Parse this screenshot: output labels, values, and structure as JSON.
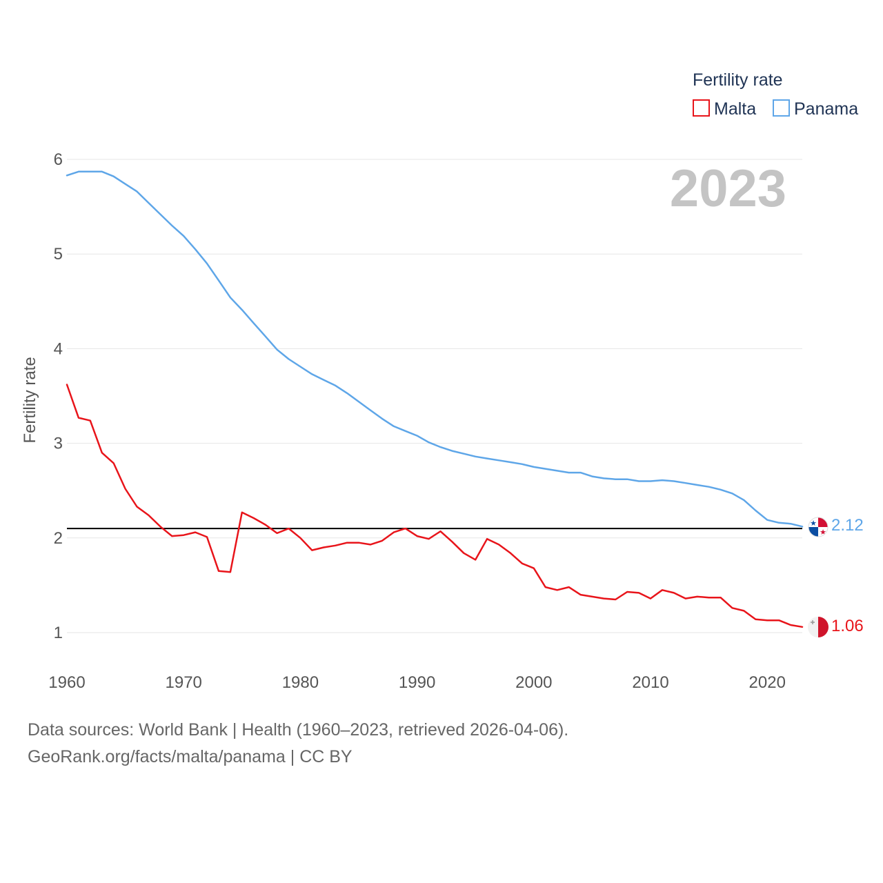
{
  "chart_data": {
    "type": "line",
    "title": "Fertility rate",
    "ylabel": "Fertility rate",
    "xlabel": "",
    "year_label": "2023",
    "xlim": [
      1960,
      2023
    ],
    "ylim": [
      0.55,
      6.2
    ],
    "x_ticks": [
      1960,
      1970,
      1980,
      1990,
      2000,
      2010,
      2020
    ],
    "y_ticks": [
      1,
      2,
      3,
      4,
      5,
      6
    ],
    "reference_line": 2.1,
    "x": [
      1960,
      1961,
      1962,
      1963,
      1964,
      1965,
      1966,
      1967,
      1968,
      1969,
      1970,
      1971,
      1972,
      1973,
      1974,
      1975,
      1976,
      1977,
      1978,
      1979,
      1980,
      1981,
      1982,
      1983,
      1984,
      1985,
      1986,
      1987,
      1988,
      1989,
      1990,
      1991,
      1992,
      1993,
      1994,
      1995,
      1996,
      1997,
      1998,
      1999,
      2000,
      2001,
      2002,
      2003,
      2004,
      2005,
      2006,
      2007,
      2008,
      2009,
      2010,
      2011,
      2012,
      2013,
      2014,
      2015,
      2016,
      2017,
      2018,
      2019,
      2020,
      2021,
      2022,
      2023
    ],
    "series": [
      {
        "name": "Malta",
        "color": "#e8141a",
        "end_label": "1.06",
        "values": [
          3.62,
          3.27,
          3.24,
          2.9,
          2.79,
          2.52,
          2.33,
          2.24,
          2.12,
          2.02,
          2.03,
          2.06,
          2.01,
          1.65,
          1.64,
          2.27,
          2.21,
          2.14,
          2.05,
          2.1,
          2.0,
          1.87,
          1.9,
          1.92,
          1.95,
          1.95,
          1.93,
          1.97,
          2.06,
          2.1,
          2.02,
          1.99,
          2.07,
          1.96,
          1.84,
          1.77,
          1.99,
          1.93,
          1.84,
          1.73,
          1.68,
          1.48,
          1.45,
          1.48,
          1.4,
          1.38,
          1.36,
          1.35,
          1.43,
          1.42,
          1.36,
          1.45,
          1.42,
          1.36,
          1.38,
          1.37,
          1.37,
          1.26,
          1.23,
          1.14,
          1.13,
          1.13,
          1.08,
          1.06
        ]
      },
      {
        "name": "Panama",
        "color": "#5ea6e8",
        "end_label": "2.12",
        "values": [
          5.83,
          5.87,
          5.87,
          5.87,
          5.82,
          5.74,
          5.66,
          5.54,
          5.42,
          5.3,
          5.19,
          5.05,
          4.9,
          4.72,
          4.54,
          4.41,
          4.27,
          4.13,
          3.99,
          3.89,
          3.81,
          3.73,
          3.67,
          3.61,
          3.53,
          3.44,
          3.35,
          3.26,
          3.18,
          3.13,
          3.08,
          3.01,
          2.96,
          2.92,
          2.89,
          2.86,
          2.84,
          2.82,
          2.8,
          2.78,
          2.75,
          2.73,
          2.71,
          2.69,
          2.69,
          2.65,
          2.63,
          2.62,
          2.62,
          2.6,
          2.6,
          2.61,
          2.6,
          2.58,
          2.56,
          2.54,
          2.51,
          2.47,
          2.4,
          2.29,
          2.19,
          2.16,
          2.15,
          2.12
        ]
      }
    ]
  },
  "footer": {
    "source": "Data sources: World Bank | Health (1960–2023, retrieved 2026-04-06).",
    "link": "GeoRank.org/facts/malta/panama | CC BY"
  },
  "icons": {
    "malta": "malta-flag-icon",
    "panama": "panama-flag-icon"
  },
  "colors": {
    "grid": "#e6e6e6",
    "reference": "#000000",
    "year": "#c4c4c4"
  }
}
